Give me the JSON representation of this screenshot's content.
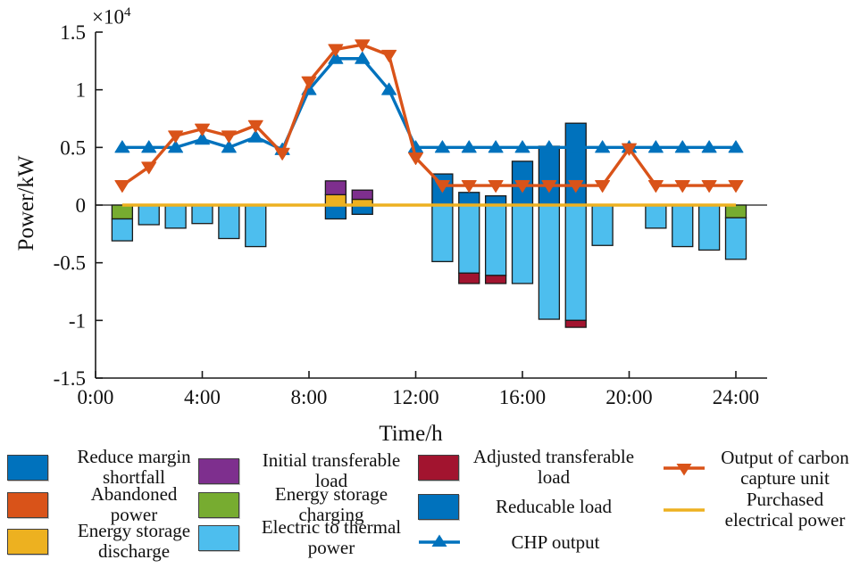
{
  "palette": {
    "blue": "#0072BD",
    "orange": "#D95319",
    "yellow": "#EDB120",
    "purple": "#7E2F8E",
    "green": "#77AC30",
    "light_blue": "#4DBEEE",
    "dark_red": "#A2142F",
    "axis": "#1a1a1a"
  },
  "figure": {
    "ylabel": "Power/kW",
    "xlabel": "Time/h",
    "exponent_prefix": "×10",
    "exponent_value": "4"
  },
  "chart_data": {
    "type": "combo-stacked-bar-line",
    "note": "values are in units of 1e4 kW; x = hour of day 1..24",
    "hours": [
      1,
      2,
      3,
      4,
      5,
      6,
      7,
      8,
      9,
      10,
      11,
      12,
      13,
      14,
      15,
      16,
      17,
      18,
      19,
      20,
      21,
      22,
      23,
      24
    ],
    "y_axis": {
      "label": "Power/kW",
      "multiplier_text": "×10^4",
      "ticks": [
        1.5,
        1,
        0.5,
        0,
        -0.5,
        -1,
        -1.5
      ],
      "tick_labels": [
        "1.5",
        "1",
        "0.5",
        "0",
        "-0.5",
        "-1",
        "-1.5"
      ],
      "ylim": [
        -1.5,
        1.5
      ]
    },
    "x_axis": {
      "label": "Time/h",
      "ticks": [
        0,
        4,
        8,
        12,
        16,
        20,
        24
      ],
      "tick_labels": [
        "0:00",
        "4:00",
        "8:00",
        "12:00",
        "16:00",
        "20:00",
        "24:00"
      ],
      "xlim": [
        0,
        25.2
      ]
    },
    "grid": false,
    "legend_position": "below plot, 4 columns",
    "stack_order_positive": [
      "reducable_load",
      "energy_storage_discharge",
      "initial_transferable_load"
    ],
    "stack_order_negative": [
      "energy_storage_charging",
      "reduce_margin_shortfall",
      "electric_to_thermal_power",
      "adjusted_transferable_load"
    ],
    "bar_series": [
      {
        "name": "reduce_margin_shortfall",
        "label": "Reduce margin shortfall",
        "color": "#0072BD",
        "values": [
          0,
          0,
          0,
          0,
          0,
          0,
          0,
          0,
          -0.12,
          -0.08,
          0,
          0,
          0,
          0,
          0,
          0,
          0,
          0,
          0,
          0,
          0,
          0,
          0,
          0
        ]
      },
      {
        "name": "abandoned_power",
        "label": "Abandoned power",
        "color": "#D95319",
        "values": [
          0,
          0,
          0,
          0,
          0,
          0,
          0,
          0,
          0,
          0,
          0,
          0,
          0,
          0,
          0,
          0,
          0,
          0,
          0,
          0,
          0,
          0,
          0,
          0
        ]
      },
      {
        "name": "energy_storage_discharge",
        "label": "Energy storage discharge",
        "color": "#EDB120",
        "values": [
          0,
          0,
          0,
          0,
          0,
          0,
          0,
          0,
          0.09,
          0.05,
          0,
          0,
          0,
          0,
          0,
          0,
          0,
          0,
          0,
          0,
          0,
          0,
          0,
          0
        ]
      },
      {
        "name": "initial_transferable_load",
        "label": "Initial transferable load",
        "color": "#7E2F8E",
        "values": [
          0,
          0,
          0,
          0,
          0,
          0,
          0,
          0,
          0.12,
          0.08,
          0,
          0,
          0,
          0,
          0,
          0,
          0,
          0,
          0,
          0,
          0,
          0,
          0,
          0
        ]
      },
      {
        "name": "energy_storage_charging",
        "label": "Energy storage charging",
        "color": "#77AC30",
        "values": [
          -0.12,
          0,
          0,
          0,
          0,
          0,
          0,
          0,
          0,
          0,
          0,
          0,
          0,
          0,
          0,
          0,
          0,
          0,
          0,
          0,
          0,
          0,
          0,
          -0.11
        ]
      },
      {
        "name": "electric_to_thermal_power",
        "label": "Electric to thermal power",
        "color": "#4DBEEE",
        "values": [
          -0.19,
          -0.17,
          -0.2,
          -0.16,
          -0.29,
          -0.36,
          0,
          0,
          0,
          0,
          0,
          0,
          -0.49,
          -0.59,
          -0.61,
          -0.68,
          -0.99,
          -1.0,
          -0.35,
          0,
          -0.2,
          -0.36,
          -0.39,
          -0.36
        ]
      },
      {
        "name": "adjusted_transferable_load",
        "label": "Adjusted transferable load",
        "color": "#A2142F",
        "values": [
          0,
          0,
          0,
          0,
          0,
          0,
          0,
          0,
          0,
          0,
          0,
          0,
          0,
          -0.09,
          -0.07,
          0,
          0,
          -0.06,
          0,
          0,
          0,
          0,
          0,
          0
        ]
      },
      {
        "name": "reducable_load",
        "label": "Reducable load",
        "color": "#0072BD",
        "values": [
          0,
          0,
          0,
          0,
          0,
          0,
          0,
          0,
          0,
          0,
          0,
          0,
          0.27,
          0.11,
          0.08,
          0.38,
          0.51,
          0.71,
          0,
          0,
          0,
          0,
          0,
          0
        ]
      }
    ],
    "line_series": [
      {
        "name": "purchased_electrical_power",
        "label": "Purchased electrical power",
        "color": "#EDB120",
        "marker": "none",
        "values": [
          0,
          0,
          0,
          0,
          0,
          0,
          0,
          0,
          0,
          0,
          0,
          0,
          0,
          0,
          0,
          0,
          0,
          0,
          0,
          0,
          0,
          0,
          0,
          0
        ]
      },
      {
        "name": "chp_output",
        "label": "CHP output",
        "color": "#0072BD",
        "marker": "triangle-up",
        "values": [
          0.5,
          0.5,
          0.5,
          0.57,
          0.5,
          0.59,
          0.48,
          1.0,
          1.27,
          1.27,
          1.0,
          0.5,
          0.5,
          0.5,
          0.5,
          0.5,
          0.5,
          0.5,
          0.5,
          0.5,
          0.5,
          0.5,
          0.5,
          0.5
        ]
      },
      {
        "name": "carbon_capture_output",
        "label": "Output of carbon capture unit",
        "color": "#D95319",
        "marker": "triangle-down",
        "values": [
          0.17,
          0.33,
          0.6,
          0.66,
          0.6,
          0.69,
          0.45,
          1.07,
          1.35,
          1.39,
          1.3,
          0.41,
          0.17,
          0.17,
          0.17,
          0.17,
          0.17,
          0.17,
          0.17,
          0.49,
          0.17,
          0.17,
          0.17,
          0.17
        ]
      }
    ]
  },
  "legend": {
    "items": [
      {
        "label": "Reduce margin\nshortfall",
        "swatch": "box",
        "color_key": "blue"
      },
      {
        "label": "Abandoned\npower",
        "swatch": "box",
        "color_key": "orange"
      },
      {
        "label": "Energy storage\ndischarge",
        "swatch": "box",
        "color_key": "yellow"
      },
      {
        "label": "Initial transferable\nload",
        "swatch": "box",
        "color_key": "purple"
      },
      {
        "label": "Energy storage\ncharging",
        "swatch": "box",
        "color_key": "green"
      },
      {
        "label": "Electric to thermal\npower",
        "swatch": "box",
        "color_key": "light_blue"
      },
      {
        "label": "Adjusted transferable\nload",
        "swatch": "box",
        "color_key": "dark_red"
      },
      {
        "label": "Reducable load",
        "swatch": "box",
        "color_key": "blue"
      },
      {
        "label": "CHP output",
        "swatch": "line-up",
        "color_key": "blue"
      },
      {
        "label": "Output of carbon\ncapture unit",
        "swatch": "line-down",
        "color_key": "orange"
      },
      {
        "label": "Purchased\nelectrical power",
        "swatch": "line",
        "color_key": "yellow"
      }
    ]
  }
}
